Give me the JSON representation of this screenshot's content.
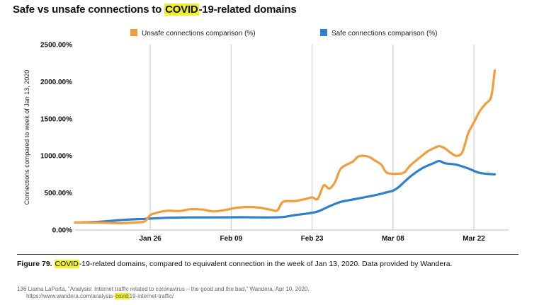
{
  "title": {
    "before": "Safe vs unsafe connections to ",
    "highlight": "COVID",
    "after": "-19-related domains"
  },
  "chart_data": {
    "type": "line",
    "title": "Safe vs unsafe connections to COVID-19-related domains",
    "xlabel": "",
    "ylabel": "Connections compared to week of Jan 13, 2020",
    "ylim": [
      0,
      2500
    ],
    "xlim": [
      0,
      75
    ],
    "x_start_label": "Jan 13, 2020",
    "grid": "vertical",
    "legend_position": "top",
    "x_ticks": [
      {
        "label": "Jan 26",
        "day": 13
      },
      {
        "label": "Feb 09",
        "day": 27
      },
      {
        "label": "Feb 23",
        "day": 41
      },
      {
        "label": "Mar 08",
        "day": 55
      },
      {
        "label": "Mar 22",
        "day": 69
      }
    ],
    "y_ticks": [
      {
        "value": 0,
        "label": "0.00%"
      },
      {
        "value": 500,
        "label": "500.00%"
      },
      {
        "value": 1000,
        "label": "1000.00%"
      },
      {
        "value": 1500,
        "label": "1500.00%"
      },
      {
        "value": 2000,
        "label": "2000.00%"
      },
      {
        "value": 2500,
        "label": "2500.00%"
      }
    ],
    "series": [
      {
        "name": "Unsafe connections comparison (%)",
        "color": "#f39c3c",
        "points": [
          [
            0,
            100
          ],
          [
            3,
            100
          ],
          [
            6,
            95
          ],
          [
            8,
            92
          ],
          [
            10,
            100
          ],
          [
            12,
            115
          ],
          [
            13,
            200
          ],
          [
            14,
            230
          ],
          [
            16,
            260
          ],
          [
            18,
            255
          ],
          [
            20,
            280
          ],
          [
            22,
            275
          ],
          [
            24,
            250
          ],
          [
            26,
            270
          ],
          [
            28,
            300
          ],
          [
            30,
            310
          ],
          [
            32,
            300
          ],
          [
            34,
            270
          ],
          [
            35,
            265
          ],
          [
            36,
            380
          ],
          [
            38,
            390
          ],
          [
            40,
            420
          ],
          [
            41,
            440
          ],
          [
            42,
            420
          ],
          [
            43,
            600
          ],
          [
            44,
            560
          ],
          [
            45,
            650
          ],
          [
            46,
            830
          ],
          [
            48,
            920
          ],
          [
            49,
            990
          ],
          [
            50,
            1000
          ],
          [
            51,
            980
          ],
          [
            52,
            930
          ],
          [
            53,
            880
          ],
          [
            54,
            770
          ],
          [
            56,
            760
          ],
          [
            57,
            780
          ],
          [
            58,
            870
          ],
          [
            60,
            1000
          ],
          [
            61,
            1060
          ],
          [
            62,
            1100
          ],
          [
            63,
            1130
          ],
          [
            64,
            1100
          ],
          [
            65,
            1040
          ],
          [
            66,
            1000
          ],
          [
            67,
            1050
          ],
          [
            68,
            1300
          ],
          [
            69,
            1450
          ],
          [
            70,
            1600
          ],
          [
            71,
            1700
          ],
          [
            72,
            1800
          ],
          [
            72.6,
            2150
          ]
        ]
      },
      {
        "name": "Safe connections comparison (%)",
        "color": "#2f7fcf",
        "points": [
          [
            0,
            100
          ],
          [
            4,
            110
          ],
          [
            8,
            135
          ],
          [
            12,
            150
          ],
          [
            16,
            165
          ],
          [
            20,
            170
          ],
          [
            24,
            170
          ],
          [
            28,
            172
          ],
          [
            32,
            170
          ],
          [
            34,
            170
          ],
          [
            36,
            175
          ],
          [
            38,
            200
          ],
          [
            40,
            220
          ],
          [
            42,
            250
          ],
          [
            44,
            320
          ],
          [
            46,
            380
          ],
          [
            48,
            410
          ],
          [
            50,
            440
          ],
          [
            52,
            470
          ],
          [
            54,
            510
          ],
          [
            55,
            530
          ],
          [
            56,
            580
          ],
          [
            58,
            720
          ],
          [
            60,
            830
          ],
          [
            62,
            900
          ],
          [
            63,
            930
          ],
          [
            64,
            900
          ],
          [
            66,
            880
          ],
          [
            68,
            830
          ],
          [
            70,
            770
          ],
          [
            72.6,
            750
          ]
        ]
      }
    ]
  },
  "caption": {
    "prefix": "Figure 79.",
    "highlight": "COVID",
    "text": "-19-related domains, compared to equivalent connection in the week of Jan 13, 2020. Data provided by Wandera."
  },
  "footnote": {
    "line1": "136 Liama LaPorta, “Analysis: Internet traffic related to coronavirus – the good and the bad,” Wandera, Apr 10, 2020.",
    "url_before": "https://www.wandera.com/analysis-",
    "url_highlight": "covid",
    "url_after": "19-internet-traffic/"
  }
}
